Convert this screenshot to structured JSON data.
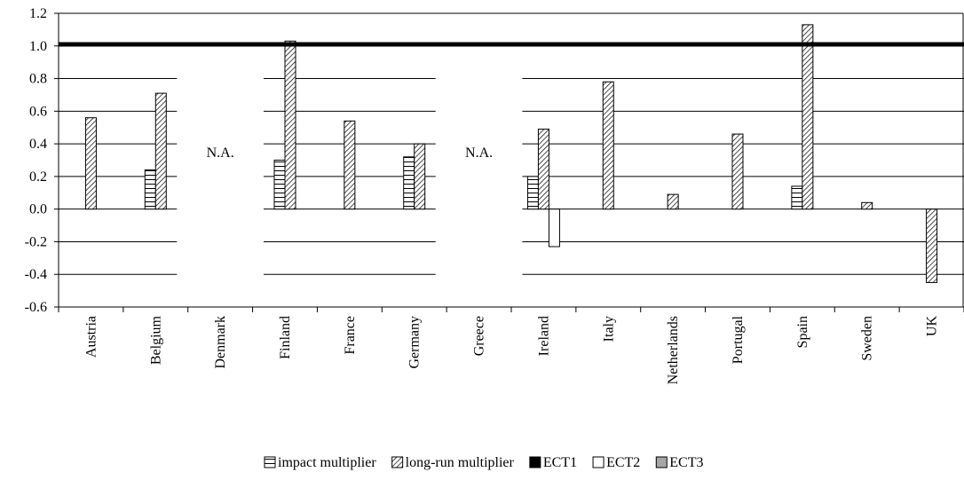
{
  "chart_data": {
    "type": "bar",
    "categories": [
      "Austria",
      "Belgium",
      "Denmark",
      "Finland",
      "France",
      "Germany",
      "Greece",
      "Ireland",
      "Italy",
      "Netherlands",
      "Portugal",
      "Spain",
      "Sweden",
      "UK"
    ],
    "series": [
      {
        "name": "impact multiplier",
        "values": [
          null,
          0.24,
          null,
          0.3,
          null,
          0.32,
          null,
          0.2,
          null,
          null,
          null,
          0.14,
          null,
          null
        ]
      },
      {
        "name": "long-run multiplier",
        "values": [
          0.56,
          0.71,
          null,
          1.03,
          0.54,
          0.4,
          null,
          0.49,
          0.78,
          0.09,
          0.46,
          1.13,
          0.04,
          -0.45
        ]
      },
      {
        "name": "ECT1",
        "values": [
          null,
          null,
          null,
          null,
          null,
          null,
          null,
          null,
          null,
          null,
          null,
          null,
          null,
          null
        ]
      },
      {
        "name": "ECT2",
        "values": [
          null,
          null,
          null,
          null,
          null,
          null,
          null,
          -0.23,
          null,
          null,
          null,
          null,
          null,
          null
        ]
      },
      {
        "name": "ECT3",
        "values": [
          null,
          null,
          null,
          null,
          null,
          null,
          null,
          null,
          null,
          null,
          null,
          null,
          null,
          null
        ]
      }
    ],
    "na_labels": [
      {
        "category": "Denmark",
        "text": "N.A."
      },
      {
        "category": "Greece",
        "text": "N.A."
      }
    ],
    "reference_line": 1.01,
    "ylim": [
      -0.6,
      1.2
    ],
    "yticks": [
      "-0.6",
      "-0.4",
      "-0.2",
      "0.0",
      "0.2",
      "0.4",
      "0.6",
      "0.8",
      "1.0",
      "1.2"
    ],
    "ytick_values": [
      -0.6,
      -0.4,
      -0.2,
      0.0,
      0.2,
      0.4,
      0.6,
      0.8,
      1.0,
      1.2
    ],
    "grid": true,
    "legend": "bottom",
    "title": "",
    "xlabel": "",
    "ylabel": ""
  }
}
